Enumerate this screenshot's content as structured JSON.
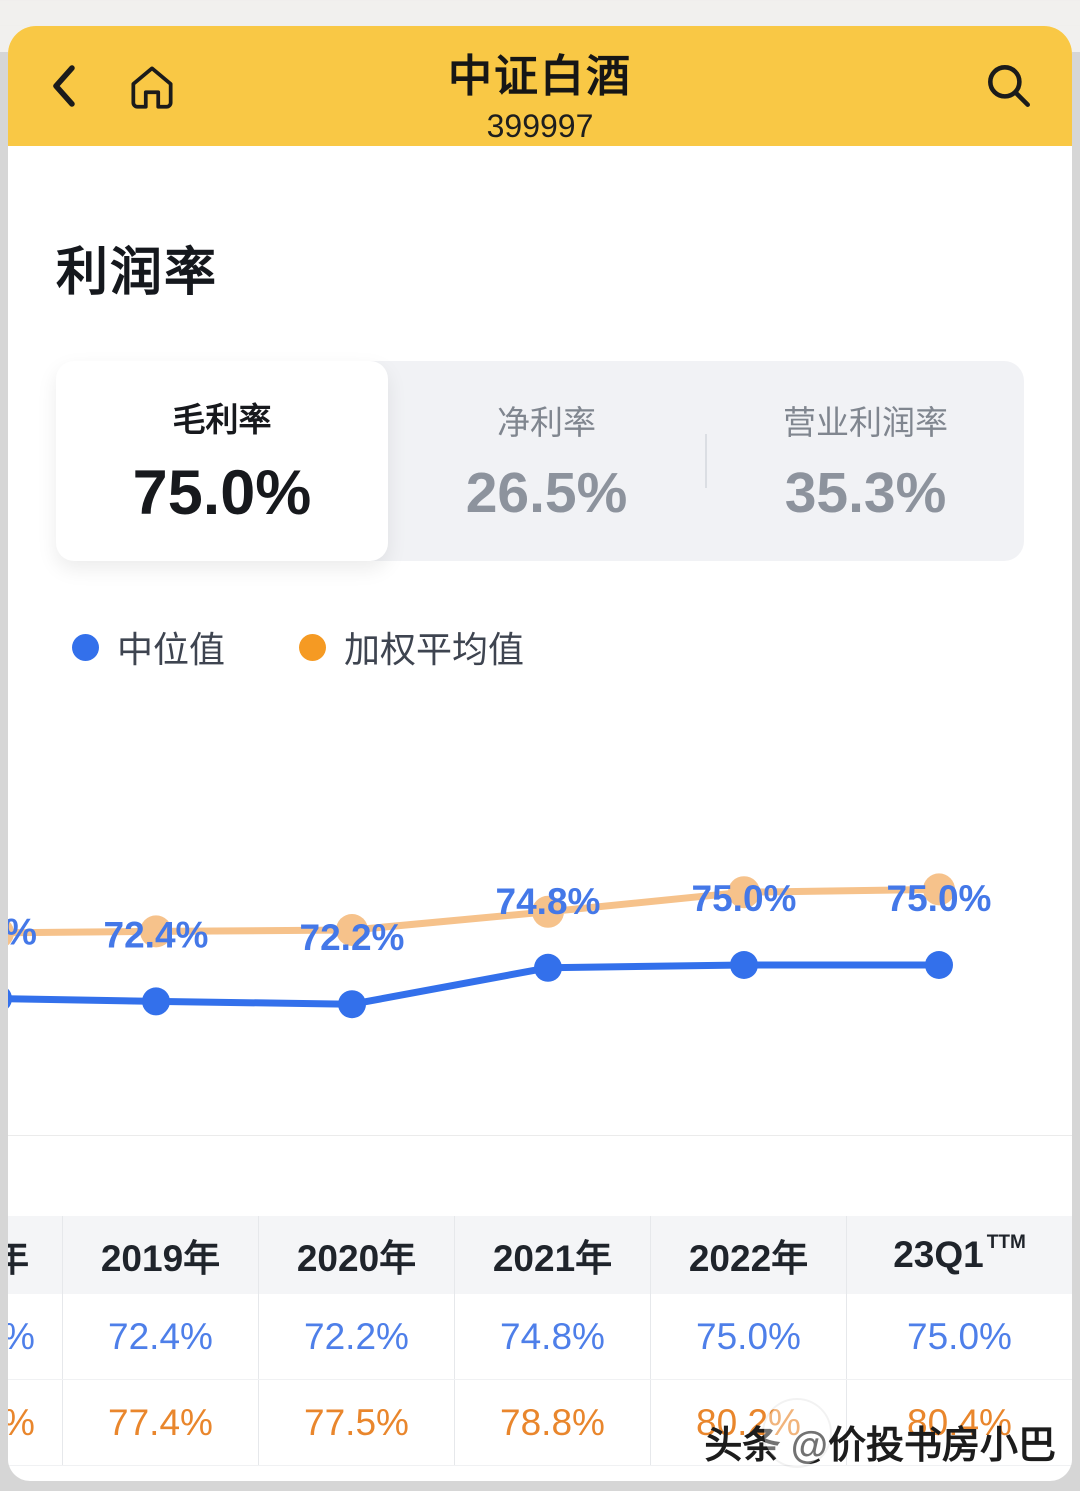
{
  "header": {
    "title": "中证白酒",
    "code": "399997"
  },
  "icons": {
    "back": "back-chevron",
    "home": "home-outline",
    "search": "search-magnifier"
  },
  "section": {
    "title": "利润率"
  },
  "tabs": [
    {
      "label": "毛利率",
      "value": "75.0%",
      "selected": true
    },
    {
      "label": "净利率",
      "value": "26.5%",
      "selected": false
    },
    {
      "label": "营业利润率",
      "value": "35.3%",
      "selected": false
    }
  ],
  "legend": [
    {
      "label": "中位值",
      "color": "#3370EB"
    },
    {
      "label": "加权平均值",
      "color": "#F59A23"
    }
  ],
  "chart_data": {
    "type": "line",
    "categories": [
      "年",
      "2019年",
      "2020年",
      "2021年",
      "2022年",
      "23Q1 TTM"
    ],
    "series": [
      {
        "name": "中位值",
        "color": "#3370EB",
        "values": [
          72.6,
          72.4,
          72.2,
          74.8,
          75.0,
          75.0
        ]
      },
      {
        "name": "加权平均值",
        "color": "#F6C28B",
        "values": [
          77.3,
          77.4,
          77.5,
          78.8,
          80.2,
          80.4
        ]
      }
    ],
    "point_labels": [
      "%",
      "72.4%",
      "72.2%",
      "74.8%",
      "75.0%",
      "75.0%"
    ],
    "label_color": "#4478E8",
    "ylim": [
      70,
      82
    ],
    "grid": false,
    "legend_position": "top-left"
  },
  "table": {
    "headers": [
      "年",
      "2019年",
      "2020年",
      "2021年",
      "2022年",
      "23Q1"
    ],
    "header_sup": "TTM",
    "rows": [
      {
        "name": "中位值",
        "color": "#4E7FE9",
        "values": [
          "%",
          "72.4%",
          "72.2%",
          "74.8%",
          "75.0%",
          "75.0%"
        ]
      },
      {
        "name": "加权平均值",
        "color": "#E9862C",
        "values": [
          "%",
          "77.4%",
          "77.5%",
          "78.8%",
          "80.2%",
          "80.4%"
        ]
      }
    ]
  },
  "watermark": {
    "text": "头条 @价投书房小巴"
  },
  "colors": {
    "topbar": "#F9C845",
    "median_blue": "#3370EB",
    "weighted_orange_line": "#F6C28B",
    "legend_orange": "#F59A23"
  }
}
